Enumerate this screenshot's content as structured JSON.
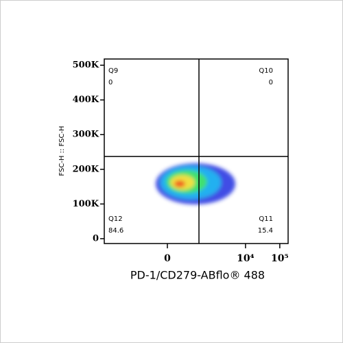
{
  "chart_data": {
    "type": "quadrant",
    "x_label": "PD-1/CD279-ABflo® 488",
    "y_label": "FSC-H :: FSC-H",
    "xscale": "biexponential",
    "xlim": [
      -3640,
      175000
    ],
    "xticks": [
      0,
      {
        "value": 10000,
        "label": "10⁴"
      },
      {
        "value": 100000,
        "label": "10⁵"
      }
    ],
    "ylim": [
      -14000,
      518000
    ],
    "yticks": [
      {
        "value": 0,
        "label": "0"
      },
      {
        "value": 100000,
        "label": "100K"
      },
      {
        "value": 200000,
        "label": "200K"
      },
      {
        "value": 300000,
        "label": "300K"
      },
      {
        "value": 400000,
        "label": "400K"
      },
      {
        "value": 500000,
        "label": "500K"
      }
    ],
    "gate": {
      "x": 432,
      "y": 237000
    },
    "quadrants": [
      {
        "name": "Q9",
        "value": 0,
        "corner": "top-left"
      },
      {
        "name": "Q10",
        "value": 0,
        "corner": "top-right"
      },
      {
        "name": "Q11",
        "value": 15.4,
        "corner": "bottom-right"
      },
      {
        "name": "Q12",
        "value": 84.6,
        "corner": "bottom-left"
      }
    ]
  }
}
